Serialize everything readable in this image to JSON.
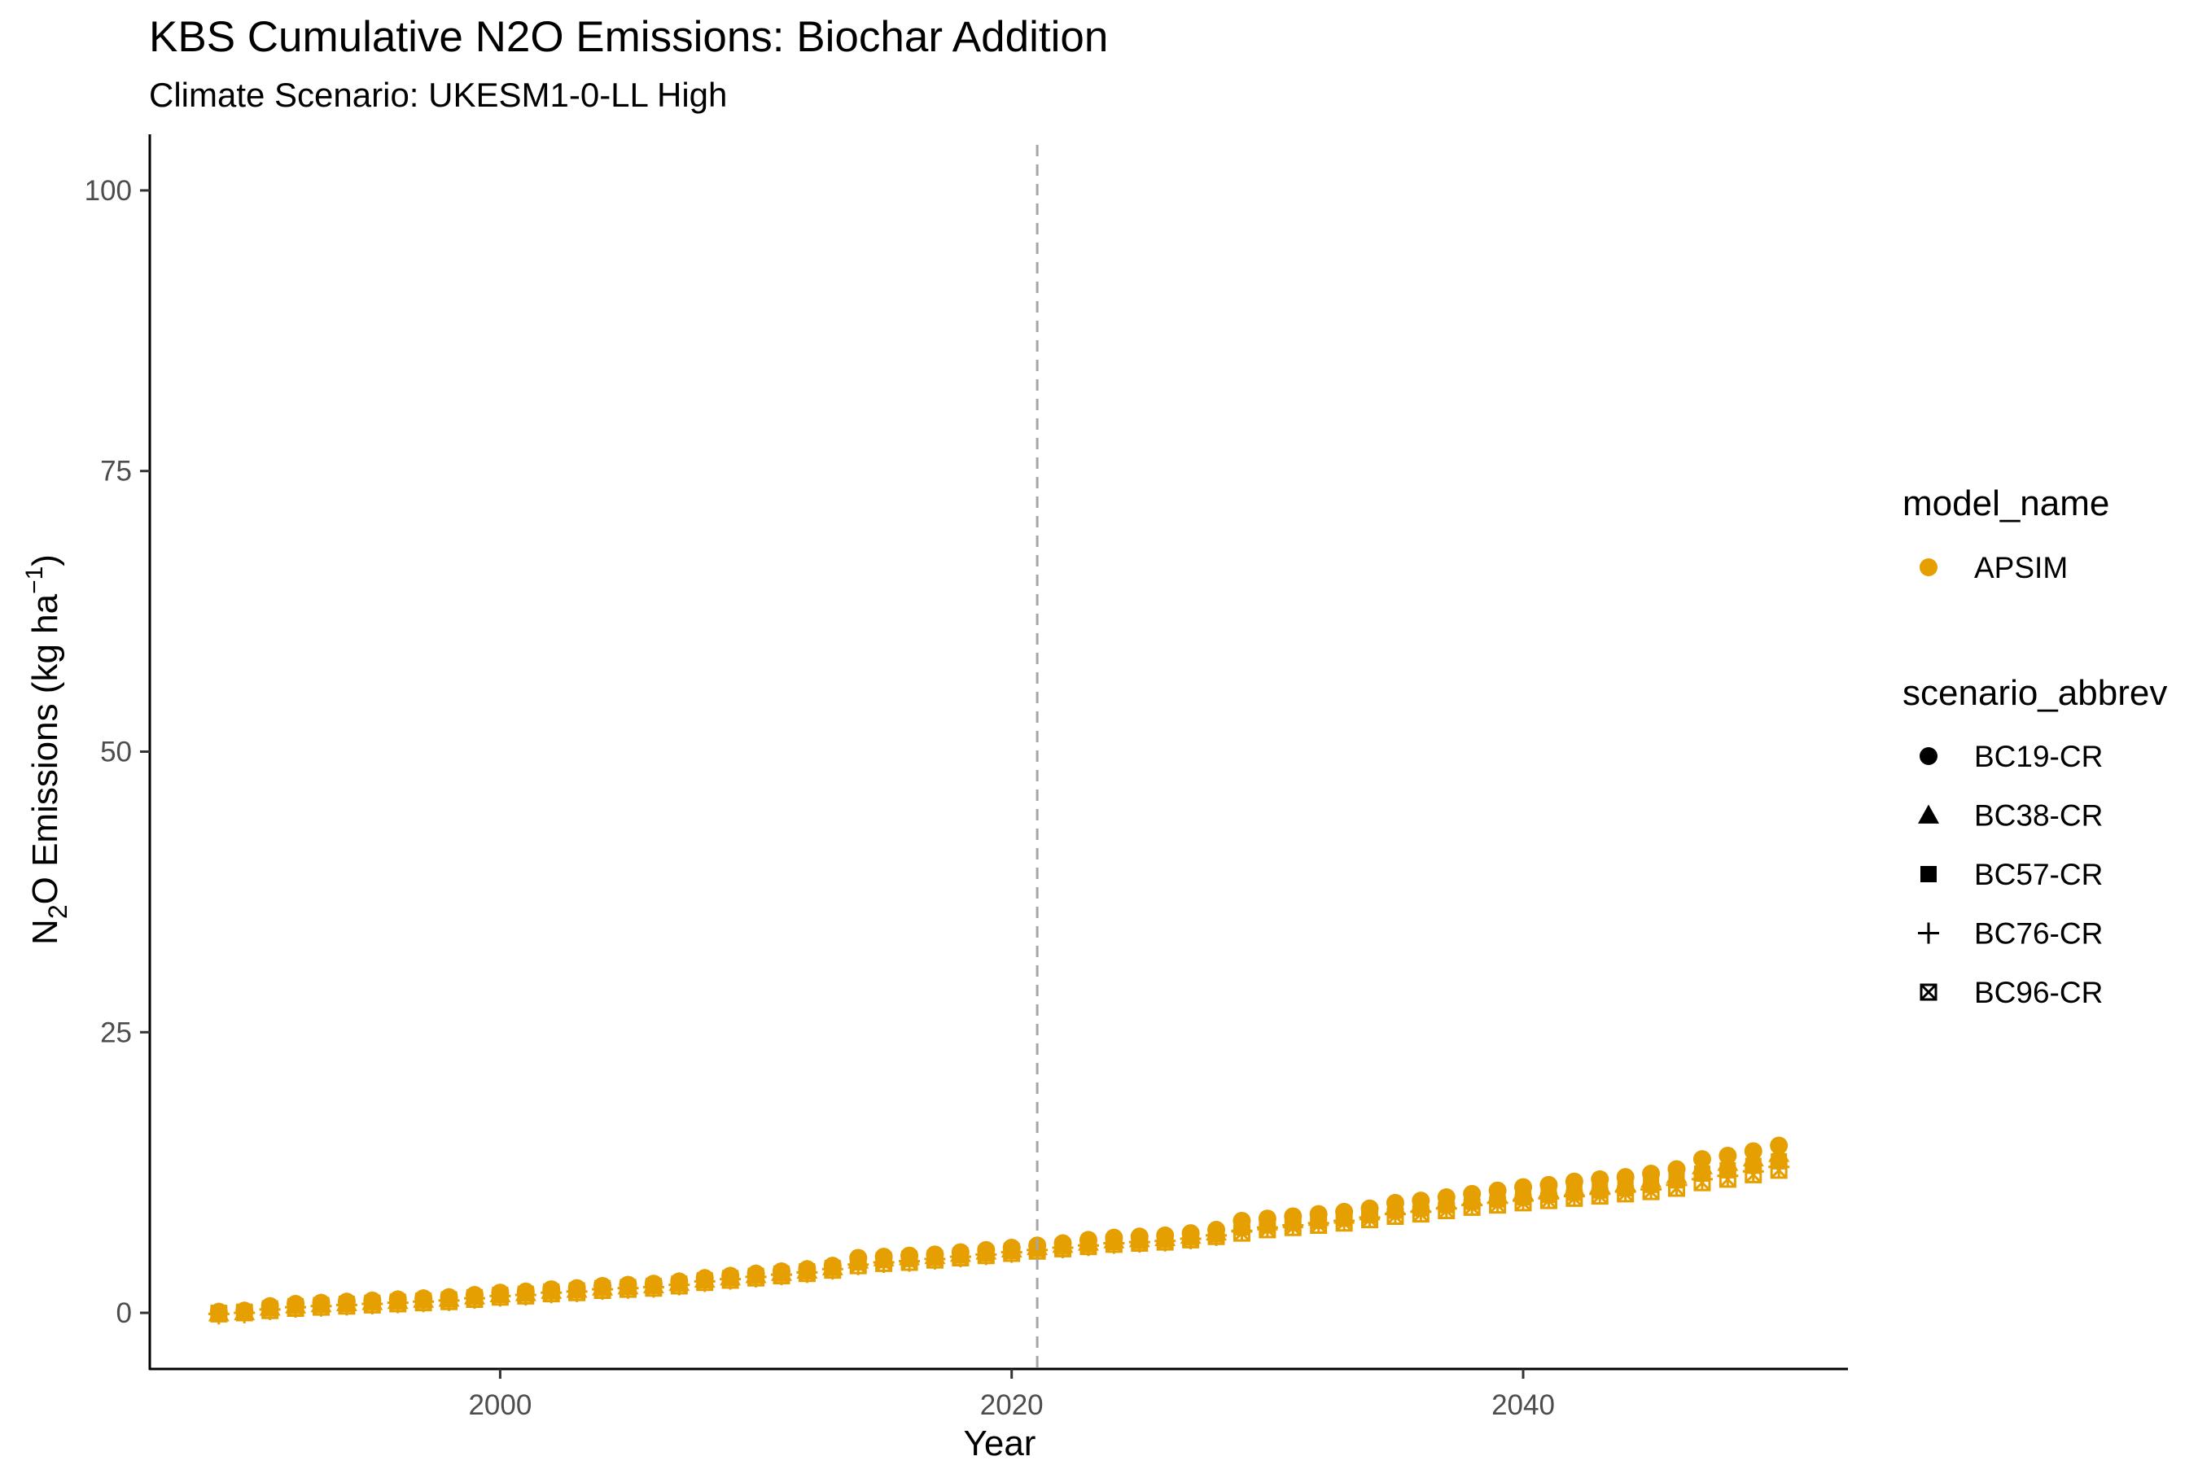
{
  "chart_data": {
    "type": "scatter",
    "title": "KBS  Cumulative N2O Emissions: Biochar Addition",
    "subtitle": "Climate Scenario: UKESM1-0-LL High",
    "xlabel": "Year",
    "ylabel_parts": [
      "N",
      "2",
      "O Emissions (kg ha",
      "−1",
      ")"
    ],
    "xlim": [
      1986.3,
      2052.7
    ],
    "ylim": [
      -5,
      105
    ],
    "x_ticks": [
      {
        "value": 2000,
        "label": "2000"
      },
      {
        "value": 2020,
        "label": "2020"
      },
      {
        "value": 2040,
        "label": "2040"
      }
    ],
    "y_ticks": [
      {
        "value": 0,
        "label": "0"
      },
      {
        "value": 25,
        "label": "25"
      },
      {
        "value": 50,
        "label": "50"
      },
      {
        "value": 75,
        "label": "75"
      },
      {
        "value": 100,
        "label": "100"
      }
    ],
    "vline": {
      "x": 2021,
      "style": "dashed",
      "color": "#a6a6a6"
    },
    "grid": false,
    "color": "#E69F00",
    "legend": {
      "placement": "right",
      "color_title": "model_name",
      "color_entries": [
        {
          "label": "APSIM",
          "color": "#E69F00"
        }
      ],
      "shape_title": "scenario_abbrev",
      "shape_entries": [
        {
          "label": "BC19-CR",
          "shape": "circle"
        },
        {
          "label": "BC38-CR",
          "shape": "triangle"
        },
        {
          "label": "BC57-CR",
          "shape": "square"
        },
        {
          "label": "BC76-CR",
          "shape": "plus"
        },
        {
          "label": "BC96-CR",
          "shape": "square-x"
        }
      ]
    },
    "x": [
      1989,
      1990,
      1991,
      1992,
      1993,
      1994,
      1995,
      1996,
      1997,
      1998,
      1999,
      2000,
      2001,
      2002,
      2003,
      2004,
      2005,
      2006,
      2007,
      2008,
      2009,
      2010,
      2011,
      2012,
      2013,
      2014,
      2015,
      2016,
      2017,
      2018,
      2019,
      2020,
      2021,
      2022,
      2023,
      2024,
      2025,
      2026,
      2027,
      2028,
      2029,
      2030,
      2031,
      2032,
      2033,
      2034,
      2035,
      2036,
      2037,
      2038,
      2039,
      2040,
      2041,
      2042,
      2043,
      2044,
      2045,
      2046,
      2047,
      2048,
      2049,
      2050
    ],
    "series": [
      {
        "name": "BC19-CR",
        "shape": "circle",
        "values": [
          0.1,
          0.2,
          0.6,
          0.8,
          0.9,
          1.0,
          1.1,
          1.2,
          1.3,
          1.4,
          1.6,
          1.8,
          1.9,
          2.1,
          2.2,
          2.4,
          2.5,
          2.6,
          2.8,
          3.1,
          3.3,
          3.5,
          3.7,
          3.9,
          4.2,
          4.9,
          5.0,
          5.1,
          5.2,
          5.4,
          5.6,
          5.8,
          6.0,
          6.2,
          6.5,
          6.7,
          6.8,
          6.9,
          7.1,
          7.4,
          8.2,
          8.4,
          8.6,
          8.8,
          9.0,
          9.3,
          9.8,
          10.0,
          10.3,
          10.6,
          10.9,
          11.2,
          11.4,
          11.7,
          11.9,
          12.1,
          12.4,
          12.8,
          13.7,
          14.0,
          14.4,
          14.9
        ]
      },
      {
        "name": "BC38-CR",
        "shape": "triangle",
        "values": [
          0.0,
          0.1,
          0.5,
          0.7,
          0.8,
          0.9,
          1.0,
          1.1,
          1.2,
          1.3,
          1.5,
          1.7,
          1.8,
          2.0,
          2.1,
          2.3,
          2.4,
          2.5,
          2.7,
          3.0,
          3.2,
          3.4,
          3.6,
          3.8,
          4.1,
          4.7,
          4.9,
          5.0,
          5.1,
          5.3,
          5.5,
          5.7,
          5.9,
          6.1,
          6.3,
          6.5,
          6.6,
          6.7,
          6.9,
          7.2,
          7.9,
          8.1,
          8.3,
          8.5,
          8.7,
          9.0,
          9.5,
          9.7,
          10.0,
          10.3,
          10.5,
          10.8,
          11.0,
          11.2,
          11.4,
          11.6,
          11.9,
          12.3,
          13.1,
          13.4,
          13.8,
          14.2
        ]
      },
      {
        "name": "BC57-CR",
        "shape": "square",
        "values": [
          0.0,
          0.1,
          0.4,
          0.6,
          0.7,
          0.8,
          0.9,
          1.0,
          1.1,
          1.2,
          1.4,
          1.6,
          1.7,
          1.9,
          2.0,
          2.2,
          2.3,
          2.4,
          2.6,
          2.9,
          3.1,
          3.3,
          3.5,
          3.7,
          4.0,
          4.5,
          4.7,
          4.8,
          4.9,
          5.1,
          5.3,
          5.5,
          5.7,
          5.9,
          6.1,
          6.3,
          6.4,
          6.5,
          6.7,
          7.0,
          7.6,
          7.8,
          8.0,
          8.2,
          8.4,
          8.7,
          9.1,
          9.3,
          9.6,
          9.9,
          10.1,
          10.3,
          10.5,
          10.7,
          10.9,
          11.1,
          11.4,
          11.8,
          12.4,
          12.7,
          13.1,
          13.5
        ]
      },
      {
        "name": "BC76-CR",
        "shape": "plus",
        "values": [
          -0.1,
          0.0,
          0.3,
          0.5,
          0.6,
          0.7,
          0.8,
          0.9,
          1.0,
          1.1,
          1.3,
          1.5,
          1.6,
          1.8,
          1.9,
          2.1,
          2.2,
          2.3,
          2.5,
          2.8,
          3.0,
          3.2,
          3.4,
          3.6,
          3.9,
          4.3,
          4.5,
          4.6,
          4.8,
          5.0,
          5.2,
          5.4,
          5.6,
          5.8,
          6.0,
          6.2,
          6.3,
          6.4,
          6.6,
          6.9,
          7.3,
          7.6,
          7.8,
          8.0,
          8.2,
          8.5,
          8.8,
          9.0,
          9.3,
          9.6,
          9.8,
          10.0,
          10.2,
          10.4,
          10.6,
          10.8,
          11.0,
          11.4,
          11.9,
          12.2,
          12.6,
          13.0
        ]
      },
      {
        "name": "BC96-CR",
        "shape": "square-x",
        "values": [
          -0.1,
          0.0,
          0.2,
          0.4,
          0.5,
          0.6,
          0.7,
          0.8,
          0.9,
          1.0,
          1.2,
          1.4,
          1.5,
          1.7,
          1.8,
          2.0,
          2.1,
          2.2,
          2.4,
          2.7,
          2.9,
          3.1,
          3.3,
          3.5,
          3.8,
          4.2,
          4.4,
          4.5,
          4.7,
          4.9,
          5.1,
          5.3,
          5.5,
          5.7,
          5.9,
          6.1,
          6.2,
          6.3,
          6.5,
          6.8,
          7.1,
          7.4,
          7.6,
          7.8,
          8.0,
          8.3,
          8.6,
          8.8,
          9.1,
          9.4,
          9.6,
          9.8,
          10.0,
          10.2,
          10.4,
          10.6,
          10.8,
          11.1,
          11.6,
          11.9,
          12.3,
          12.7
        ]
      }
    ]
  }
}
